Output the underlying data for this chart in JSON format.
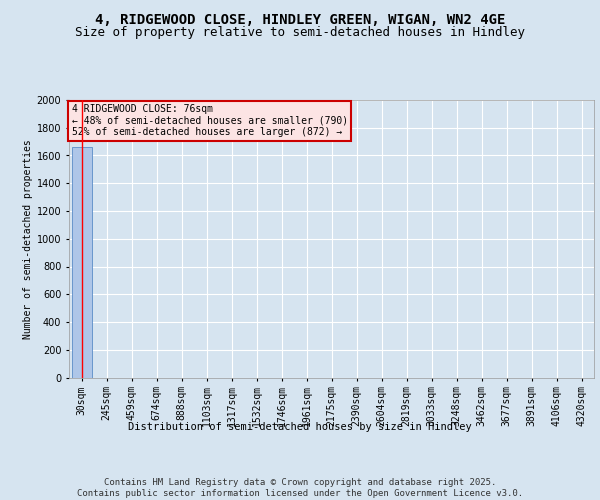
{
  "title": "4, RIDGEWOOD CLOSE, HINDLEY GREEN, WIGAN, WN2 4GE",
  "subtitle": "Size of property relative to semi-detached houses in Hindley",
  "xlabel": "Distribution of semi-detached houses by size in Hindley",
  "ylabel": "Number of semi-detached properties",
  "annotation_line1": "4 RIDGEWOOD CLOSE: 76sqm",
  "annotation_line2": "← 48% of semi-detached houses are smaller (790)",
  "annotation_line3": "52% of semi-detached houses are larger (872) →",
  "footer": "Contains HM Land Registry data © Crown copyright and database right 2025.\nContains public sector information licensed under the Open Government Licence v3.0.",
  "categories": [
    "30sqm",
    "245sqm",
    "459sqm",
    "674sqm",
    "888sqm",
    "1103sqm",
    "1317sqm",
    "1532sqm",
    "1746sqm",
    "1961sqm",
    "2175sqm",
    "2390sqm",
    "2604sqm",
    "2819sqm",
    "3033sqm",
    "3248sqm",
    "3462sqm",
    "3677sqm",
    "3891sqm",
    "4106sqm",
    "4320sqm"
  ],
  "values": [
    1662,
    0,
    0,
    0,
    0,
    0,
    0,
    0,
    0,
    0,
    0,
    0,
    0,
    0,
    0,
    0,
    0,
    0,
    0,
    0,
    0
  ],
  "bar_color": "#aec6e8",
  "bar_edge_color": "#5b8dc8",
  "ylim": [
    0,
    2000
  ],
  "yticks": [
    0,
    200,
    400,
    600,
    800,
    1000,
    1200,
    1400,
    1600,
    1800,
    2000
  ],
  "background_color": "#d6e4f0",
  "plot_bg_color": "#d6e4f0",
  "grid_color": "#ffffff",
  "annotation_box_facecolor": "#fce4e4",
  "annotation_border_color": "#cc0000",
  "title_fontsize": 10,
  "subtitle_fontsize": 9,
  "axis_fontsize": 7,
  "ylabel_fontsize": 7,
  "xlabel_fontsize": 7.5,
  "footer_fontsize": 6.5,
  "annotation_fontsize": 7
}
